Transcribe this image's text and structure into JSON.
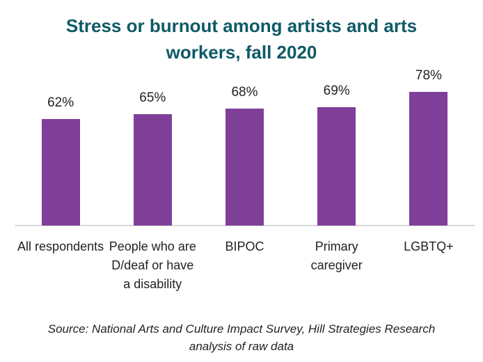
{
  "chart_data": {
    "type": "bar",
    "title": "Stress or burnout among artists and arts workers, fall 2020",
    "categories": [
      "All respondents",
      "People who are D/deaf or have a disability",
      "BIPOC",
      "Primary caregiver",
      "LGBTQ+"
    ],
    "values": [
      62,
      65,
      68,
      69,
      78
    ],
    "value_labels": [
      "62%",
      "65%",
      "68%",
      "69%",
      "78%"
    ],
    "color": "#7f3f98",
    "ylim": [
      0,
      90
    ],
    "grid": false,
    "source": "Source: National Arts and Culture Impact Survey, Hill Strategies Research analysis of raw data"
  }
}
